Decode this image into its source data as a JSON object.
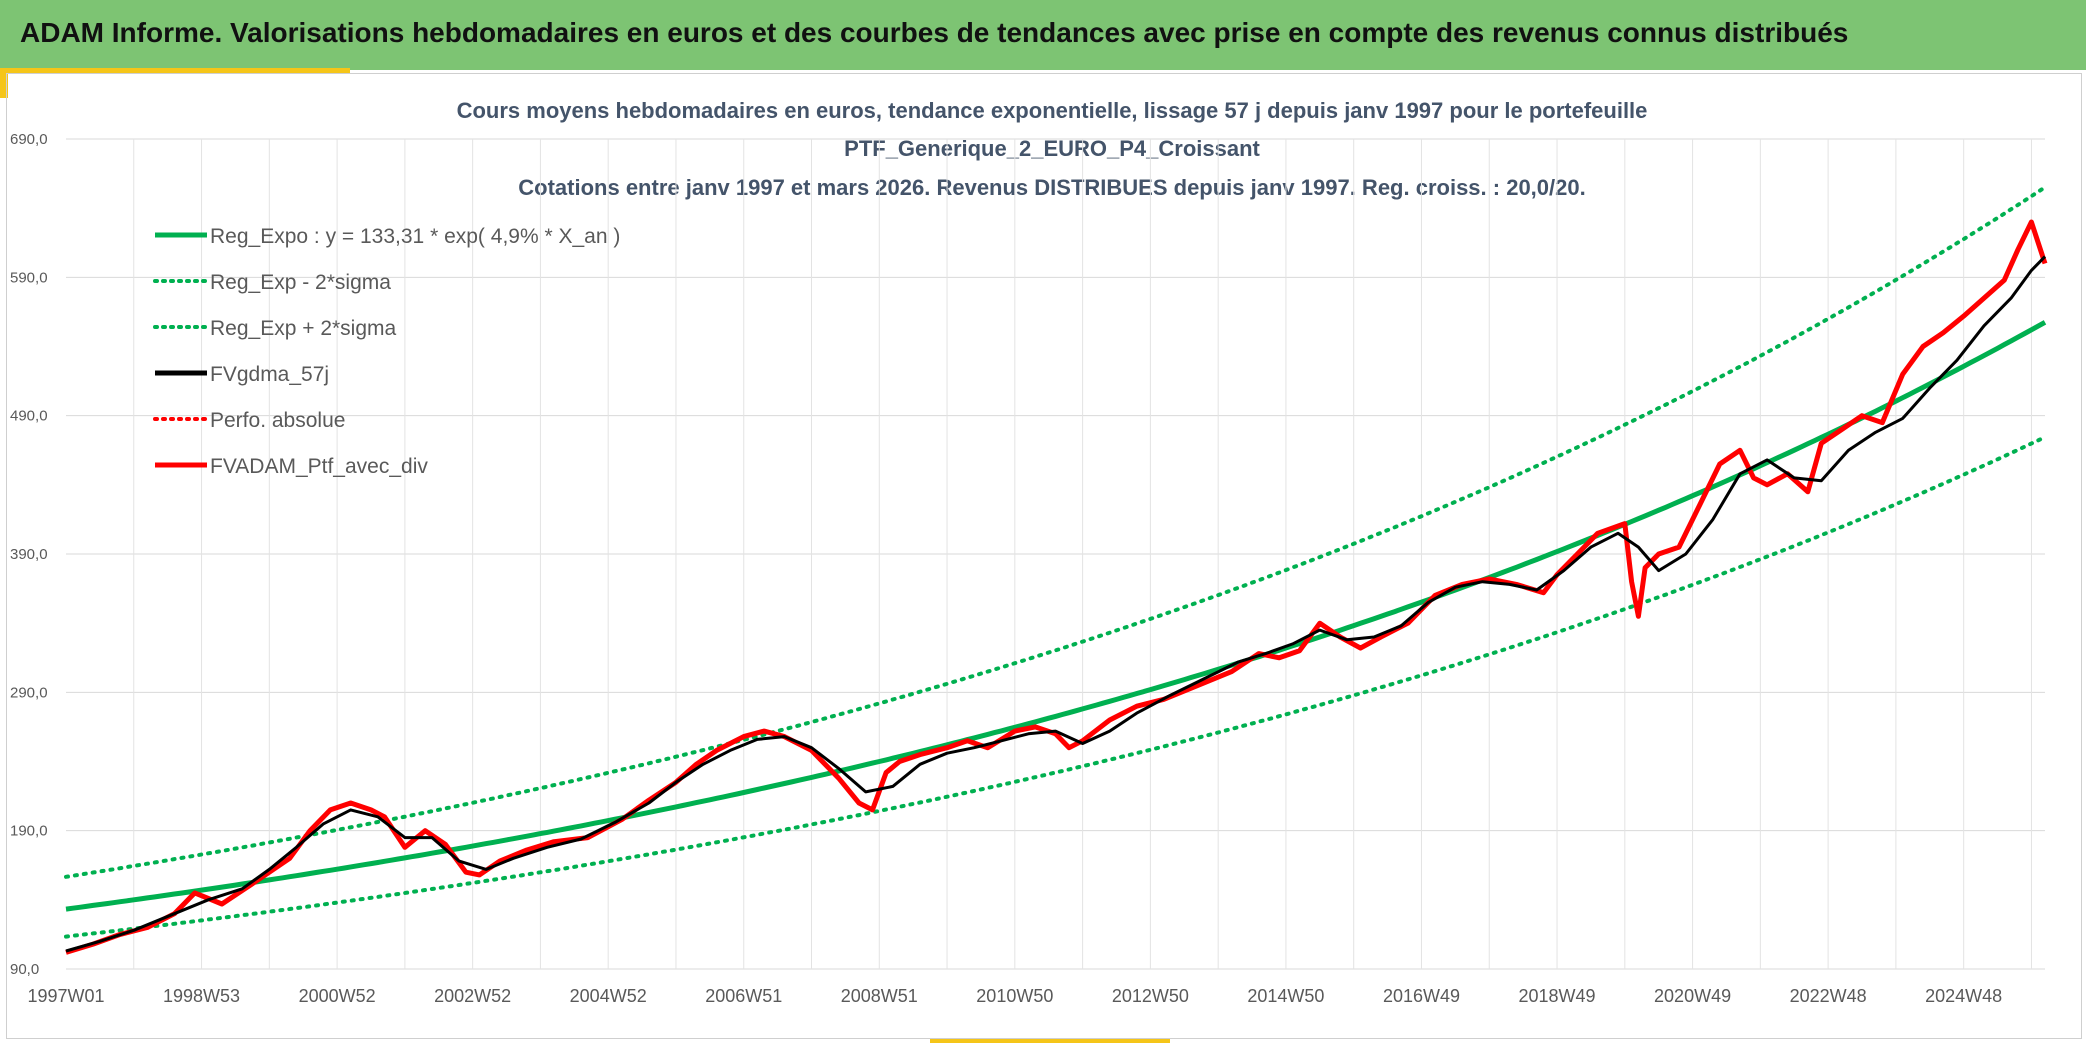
{
  "header": {
    "title": "ADAM Informe. Valorisations hebdomadaires en euros et des courbes de tendances avec prise en compte des revenus connus distribués"
  },
  "colors": {
    "banner": "#7dc473",
    "accent": "#f5c518",
    "trend": "#00b050",
    "smooth": "#000000",
    "perf": "#ff0000"
  },
  "chart_data": {
    "type": "line",
    "title_lines": [
      "Cours moyens hebdomadaires en euros, tendance exponentielle, lissage 57 j depuis janv 1997 pour le portefeuille",
      "PTF_Generique_2_EURO_P4_Croissant",
      "Cotations entre janv 1997 et mars 2026. Revenus DISTRIBUES depuis janv 1997. Reg. croiss. : 20,0/20."
    ],
    "x_start": 1997.0,
    "x_end": 2026.2,
    "ylim": [
      90,
      690
    ],
    "y_ticks": [
      "90,0",
      "190,0",
      "290,0",
      "390,0",
      "490,0",
      "590,0",
      "690,0"
    ],
    "y_tick_values": [
      90,
      190,
      290,
      390,
      490,
      590,
      690
    ],
    "x_ticks": [
      "1997W01",
      "1998W53",
      "2000W52",
      "2002W52",
      "2004W52",
      "2006W51",
      "2008W51",
      "2010W50",
      "2012W50",
      "2014W50",
      "2016W49",
      "2018W49",
      "2020W49",
      "2022W48",
      "2024W48"
    ],
    "x_tick_years": [
      1997,
      1999,
      2001,
      2003,
      2005,
      2007,
      2009,
      2011,
      2013,
      2015,
      2017,
      2019,
      2021,
      2023,
      2025
    ],
    "trend": {
      "a": 133.31,
      "rate": 0.049,
      "sigma_factor": 1.175
    },
    "legend": [
      {
        "label": "Reg_Expo : y = 133,31 * exp( 4,9% *  X_an )",
        "color": "#00b050",
        "style": "solid"
      },
      {
        "label": "Reg_Exp - 2*sigma",
        "color": "#00b050",
        "style": "dotted"
      },
      {
        "label": "Reg_Exp + 2*sigma",
        "color": "#00b050",
        "style": "dotted"
      },
      {
        "label": "FVgdma_57j",
        "color": "#000000",
        "style": "solid"
      },
      {
        "label": "Perfo. absolue",
        "color": "#ff0000",
        "style": "dotted"
      },
      {
        "label": "FVADAM_Ptf_avec_div",
        "color": "#ff0000",
        "style": "solid"
      }
    ],
    "series": [
      {
        "name": "FVADAM_Ptf_avec_div",
        "x": [
          1997.0,
          1997.4,
          1997.8,
          1998.2,
          1998.6,
          1998.9,
          1999.3,
          1999.7,
          2000.0,
          2000.3,
          2000.6,
          2000.9,
          2001.2,
          2001.5,
          2001.7,
          2002.0,
          2002.3,
          2002.6,
          2002.9,
          2003.1,
          2003.4,
          2003.8,
          2004.2,
          2004.7,
          2005.2,
          2005.6,
          2006.0,
          2006.3,
          2006.6,
          2007.0,
          2007.3,
          2007.6,
          2008.0,
          2008.4,
          2008.7,
          2008.9,
          2009.1,
          2009.3,
          2009.6,
          2010.0,
          2010.3,
          2010.6,
          2011.0,
          2011.3,
          2011.6,
          2011.8,
          2012.0,
          2012.4,
          2012.8,
          2013.2,
          2013.7,
          2014.2,
          2014.6,
          2014.9,
          2015.2,
          2015.5,
          2015.8,
          2016.1,
          2016.4,
          2016.8,
          2017.2,
          2017.6,
          2018.0,
          2018.4,
          2018.8,
          2019.0,
          2019.3,
          2019.6,
          2020.0,
          2020.1,
          2020.2,
          2020.3,
          2020.5,
          2020.8,
          2021.1,
          2021.4,
          2021.7,
          2021.9,
          2022.1,
          2022.4,
          2022.7,
          2022.9,
          2023.2,
          2023.5,
          2023.8,
          2024.1,
          2024.4,
          2024.7,
          2025.0,
          2025.3,
          2025.6,
          2025.8,
          2026.0,
          2026.2
        ],
        "values": [
          102,
          108,
          115,
          120,
          130,
          145,
          137,
          150,
          160,
          170,
          190,
          205,
          210,
          205,
          200,
          178,
          190,
          180,
          160,
          158,
          168,
          176,
          182,
          185,
          198,
          212,
          225,
          238,
          248,
          258,
          262,
          258,
          248,
          228,
          210,
          205,
          232,
          240,
          245,
          250,
          255,
          250,
          262,
          265,
          260,
          250,
          255,
          270,
          280,
          285,
          295,
          305,
          318,
          315,
          320,
          340,
          330,
          322,
          330,
          340,
          360,
          368,
          372,
          368,
          362,
          375,
          390,
          405,
          412,
          370,
          345,
          380,
          390,
          395,
          425,
          455,
          465,
          445,
          440,
          448,
          435,
          470,
          480,
          490,
          485,
          520,
          540,
          550,
          562,
          575,
          588,
          610,
          630,
          600
        ]
      },
      {
        "name": "FVgdma_57j",
        "x": [
          1997.0,
          1997.5,
          1998.0,
          1998.6,
          1999.1,
          1999.6,
          2000.0,
          2000.4,
          2000.8,
          2001.2,
          2001.6,
          2002.0,
          2002.4,
          2002.8,
          2003.2,
          2003.6,
          2004.1,
          2004.6,
          2005.1,
          2005.6,
          2006.0,
          2006.4,
          2006.8,
          2007.2,
          2007.6,
          2008.0,
          2008.4,
          2008.8,
          2009.2,
          2009.6,
          2010.0,
          2010.4,
          2010.8,
          2011.2,
          2011.6,
          2012.0,
          2012.4,
          2012.8,
          2013.3,
          2013.8,
          2014.3,
          2014.7,
          2015.1,
          2015.5,
          2015.9,
          2016.3,
          2016.7,
          2017.1,
          2017.5,
          2017.9,
          2018.3,
          2018.7,
          2019.1,
          2019.5,
          2019.9,
          2020.2,
          2020.5,
          2020.9,
          2021.3,
          2021.7,
          2022.1,
          2022.5,
          2022.9,
          2023.3,
          2023.7,
          2024.1,
          2024.5,
          2024.9,
          2025.3,
          2025.7,
          2026.0,
          2026.2
        ],
        "values": [
          103,
          110,
          118,
          130,
          140,
          148,
          162,
          178,
          195,
          205,
          200,
          185,
          185,
          168,
          162,
          170,
          178,
          184,
          196,
          210,
          225,
          238,
          248,
          256,
          258,
          250,
          235,
          218,
          222,
          238,
          246,
          250,
          255,
          260,
          262,
          253,
          262,
          275,
          288,
          300,
          312,
          318,
          325,
          335,
          328,
          330,
          338,
          355,
          366,
          370,
          368,
          364,
          378,
          395,
          405,
          395,
          378,
          390,
          415,
          448,
          458,
          445,
          443,
          465,
          478,
          488,
          510,
          530,
          555,
          575,
          595,
          605
        ]
      }
    ]
  }
}
